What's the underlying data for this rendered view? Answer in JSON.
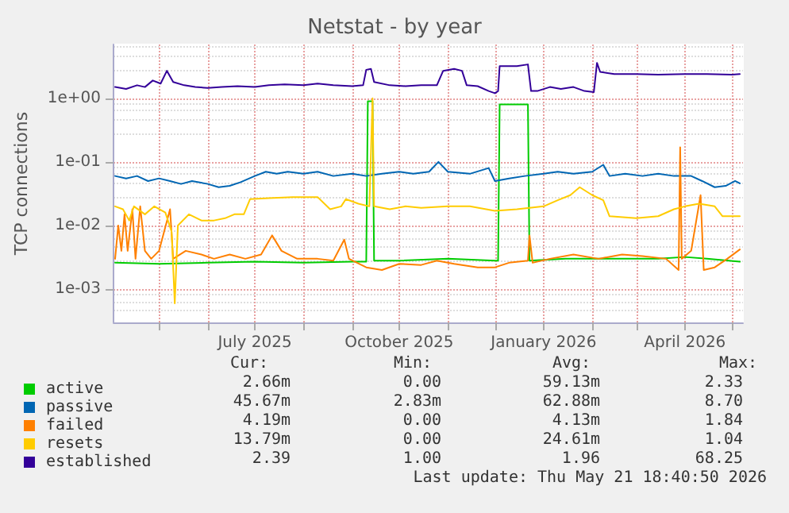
{
  "chart_data": {
    "type": "line",
    "title": "Netstat - by year",
    "ylabel": "TCP connections",
    "log": "y",
    "grid": true,
    "legend": "bottom",
    "marker": "none",
    "line_style": "solid",
    "xlim": [
      "2025-04-02",
      "2026-05-08"
    ],
    "xticks": [
      {
        "value": "2025-05-01",
        "label": null
      },
      {
        "value": "2025-06-01",
        "label": null
      },
      {
        "value": "2025-07-01",
        "label": "July 2025"
      },
      {
        "value": "2025-08-01",
        "label": null
      },
      {
        "value": "2025-09-01",
        "label": null
      },
      {
        "value": "2025-10-01",
        "label": "October 2025"
      },
      {
        "value": "2025-11-01",
        "label": null
      },
      {
        "value": "2025-12-01",
        "label": null
      },
      {
        "value": "2026-01-01",
        "label": "January 2026"
      },
      {
        "value": "2026-02-01",
        "label": null
      },
      {
        "value": "2026-03-01",
        "label": null
      },
      {
        "value": "2026-04-01",
        "label": "April 2026"
      },
      {
        "value": "2026-05-01",
        "label": null
      }
    ],
    "ylim": [
      0.0003,
      7
    ],
    "yticks": [
      {
        "value": 0.001,
        "label": "1e-03"
      },
      {
        "value": 0.01,
        "label": "1e-02"
      },
      {
        "value": 0.1,
        "label": "1e-01"
      },
      {
        "value": 1,
        "label": "1e+00"
      }
    ],
    "series": [
      {
        "name": "active",
        "color": "#00cc00",
        "x": [
          "2025-04-03",
          "2025-05-01",
          "2025-06-01",
          "2025-07-01",
          "2025-08-01",
          "2025-09-01",
          "2025-09-10",
          "2025-09-11",
          "2025-09-14",
          "2025-09-15",
          "2025-10-01",
          "2025-11-01",
          "2025-12-01",
          "2025-12-03",
          "2025-12-04",
          "2025-12-22",
          "2025-12-23",
          "2026-01-15",
          "2026-02-15",
          "2026-03-15",
          "2026-04-01",
          "2026-04-15",
          "2026-05-06"
        ],
        "values": [
          0.0026,
          0.0025,
          0.0026,
          0.0027,
          0.0026,
          0.0027,
          0.0027,
          0.9,
          0.9,
          0.0028,
          0.0028,
          0.003,
          0.0028,
          0.0028,
          0.8,
          0.8,
          0.0028,
          0.003,
          0.003,
          0.003,
          0.0032,
          0.003,
          0.0027
        ]
      },
      {
        "name": "passive",
        "color": "#0066b3",
        "x": [
          "2025-04-03",
          "2025-04-10",
          "2025-04-17",
          "2025-04-24",
          "2025-05-01",
          "2025-05-08",
          "2025-05-15",
          "2025-05-22",
          "2025-06-01",
          "2025-06-08",
          "2025-06-15",
          "2025-06-22",
          "2025-07-01",
          "2025-07-08",
          "2025-07-15",
          "2025-07-22",
          "2025-08-01",
          "2025-08-10",
          "2025-08-20",
          "2025-09-01",
          "2025-09-10",
          "2025-09-20",
          "2025-10-01",
          "2025-10-10",
          "2025-10-20",
          "2025-10-26",
          "2025-11-01",
          "2025-11-15",
          "2025-11-27",
          "2025-12-01",
          "2025-12-10",
          "2025-12-20",
          "2026-01-01",
          "2026-01-10",
          "2026-01-20",
          "2026-02-01",
          "2026-02-08",
          "2026-02-12",
          "2026-02-22",
          "2026-03-05",
          "2026-03-15",
          "2026-03-25",
          "2026-04-05",
          "2026-04-12",
          "2026-04-20",
          "2026-04-27",
          "2026-05-03",
          "2026-05-06"
        ],
        "values": [
          0.06,
          0.055,
          0.06,
          0.05,
          0.055,
          0.05,
          0.045,
          0.05,
          0.045,
          0.04,
          0.042,
          0.048,
          0.06,
          0.07,
          0.065,
          0.07,
          0.065,
          0.07,
          0.06,
          0.065,
          0.06,
          0.065,
          0.07,
          0.065,
          0.07,
          0.1,
          0.07,
          0.065,
          0.08,
          0.05,
          0.055,
          0.06,
          0.065,
          0.07,
          0.065,
          0.07,
          0.09,
          0.06,
          0.065,
          0.06,
          0.065,
          0.06,
          0.06,
          0.05,
          0.04,
          0.042,
          0.05,
          0.046
        ]
      },
      {
        "name": "failed",
        "color": "#ff8000",
        "x": [
          "2025-04-03",
          "2025-04-05",
          "2025-04-07",
          "2025-04-09",
          "2025-04-11",
          "2025-04-14",
          "2025-04-16",
          "2025-04-19",
          "2025-04-22",
          "2025-04-26",
          "2025-05-01",
          "2025-05-08",
          "2025-05-10",
          "2025-05-18",
          "2025-05-28",
          "2025-06-05",
          "2025-06-15",
          "2025-06-25",
          "2025-07-05",
          "2025-07-12",
          "2025-07-18",
          "2025-07-28",
          "2025-08-10",
          "2025-08-20",
          "2025-08-27",
          "2025-08-30",
          "2025-09-10",
          "2025-09-20",
          "2025-10-01",
          "2025-10-15",
          "2025-10-25",
          "2025-11-05",
          "2025-11-20",
          "2025-12-01",
          "2025-12-10",
          "2025-12-22",
          "2025-12-23",
          "2025-12-25",
          "2026-01-05",
          "2026-01-20",
          "2026-02-05",
          "2026-02-20",
          "2026-03-05",
          "2026-03-20",
          "2026-03-28",
          "2026-03-29",
          "2026-03-30",
          "2026-04-05",
          "2026-04-11",
          "2026-04-13",
          "2026-04-20",
          "2026-04-28",
          "2026-05-06"
        ],
        "values": [
          0.003,
          0.01,
          0.004,
          0.015,
          0.004,
          0.018,
          0.003,
          0.02,
          0.004,
          0.003,
          0.004,
          0.018,
          0.003,
          0.004,
          0.0035,
          0.003,
          0.0035,
          0.003,
          0.0035,
          0.007,
          0.004,
          0.003,
          0.003,
          0.0028,
          0.006,
          0.003,
          0.0022,
          0.002,
          0.0025,
          0.0024,
          0.0028,
          0.0025,
          0.0022,
          0.0022,
          0.0026,
          0.0028,
          0.007,
          0.0026,
          0.003,
          0.0035,
          0.003,
          0.0035,
          0.0033,
          0.003,
          0.002,
          0.17,
          0.003,
          0.004,
          0.03,
          0.002,
          0.0022,
          0.003,
          0.0042
        ]
      },
      {
        "name": "resets",
        "color": "#ffcc00",
        "x": [
          "2025-04-03",
          "2025-04-08",
          "2025-04-12",
          "2025-04-15",
          "2025-04-22",
          "2025-04-28",
          "2025-05-05",
          "2025-05-09",
          "2025-05-11",
          "2025-05-13",
          "2025-05-20",
          "2025-05-28",
          "2025-06-05",
          "2025-06-12",
          "2025-06-18",
          "2025-06-24",
          "2025-06-28",
          "2025-07-10",
          "2025-07-25",
          "2025-08-10",
          "2025-08-18",
          "2025-08-25",
          "2025-08-28",
          "2025-09-05",
          "2025-09-12",
          "2025-09-14",
          "2025-09-15",
          "2025-09-25",
          "2025-10-05",
          "2025-10-15",
          "2025-11-01",
          "2025-11-15",
          "2025-12-01",
          "2025-12-15",
          "2026-01-01",
          "2026-01-10",
          "2026-01-18",
          "2026-01-24",
          "2026-02-01",
          "2026-02-08",
          "2026-02-12",
          "2026-03-01",
          "2026-03-15",
          "2026-03-25",
          "2026-04-01",
          "2026-04-10",
          "2026-04-20",
          "2026-04-25",
          "2026-05-06"
        ],
        "values": [
          0.02,
          0.018,
          0.012,
          0.02,
          0.015,
          0.02,
          0.016,
          0.008,
          0.0006,
          0.01,
          0.015,
          0.012,
          0.012,
          0.013,
          0.015,
          0.015,
          0.026,
          0.027,
          0.028,
          0.028,
          0.018,
          0.02,
          0.026,
          0.022,
          0.02,
          1.0,
          0.02,
          0.018,
          0.02,
          0.019,
          0.02,
          0.02,
          0.017,
          0.018,
          0.02,
          0.025,
          0.03,
          0.04,
          0.03,
          0.025,
          0.014,
          0.013,
          0.014,
          0.018,
          0.02,
          0.022,
          0.02,
          0.014,
          0.014
        ]
      },
      {
        "name": "established",
        "color": "#330099",
        "x": [
          "2025-04-03",
          "2025-04-10",
          "2025-04-17",
          "2025-04-22",
          "2025-04-27",
          "2025-05-02",
          "2025-05-06",
          "2025-05-10",
          "2025-05-17",
          "2025-05-24",
          "2025-06-01",
          "2025-06-10",
          "2025-06-20",
          "2025-07-01",
          "2025-07-10",
          "2025-07-20",
          "2025-08-01",
          "2025-08-10",
          "2025-08-20",
          "2025-09-01",
          "2025-09-08",
          "2025-09-10",
          "2025-09-13",
          "2025-09-15",
          "2025-09-25",
          "2025-10-05",
          "2025-10-15",
          "2025-10-25",
          "2025-10-29",
          "2025-11-05",
          "2025-11-10",
          "2025-11-13",
          "2025-11-20",
          "2025-11-27",
          "2025-12-01",
          "2025-12-03",
          "2025-12-04",
          "2025-12-15",
          "2025-12-22",
          "2025-12-24",
          "2025-12-28",
          "2026-01-05",
          "2026-01-12",
          "2026-01-20",
          "2026-01-27",
          "2026-02-02",
          "2026-02-04",
          "2026-02-06",
          "2026-02-15",
          "2026-03-01",
          "2026-03-15",
          "2026-04-01",
          "2026-04-15",
          "2026-05-01",
          "2026-05-06"
        ],
        "values": [
          1.5,
          1.4,
          1.6,
          1.5,
          1.9,
          1.7,
          2.7,
          1.8,
          1.6,
          1.5,
          1.45,
          1.5,
          1.55,
          1.5,
          1.6,
          1.65,
          1.6,
          1.7,
          1.6,
          1.55,
          1.6,
          2.8,
          2.9,
          1.8,
          1.6,
          1.55,
          1.6,
          1.6,
          2.7,
          2.9,
          2.7,
          1.6,
          1.55,
          1.3,
          1.2,
          1.3,
          3.2,
          3.2,
          3.4,
          1.3,
          1.3,
          1.5,
          1.4,
          1.5,
          1.3,
          1.25,
          3.6,
          2.6,
          2.4,
          2.4,
          2.35,
          2.4,
          2.4,
          2.35,
          2.4
        ]
      }
    ],
    "annotations": [
      "Cur:",
      "Min:",
      "Avg:",
      "Max:",
      "2.66m",
      "0.00",
      "59.13m",
      "2.33",
      "45.67m",
      "2.83m",
      "62.88m",
      "8.70",
      "4.19m",
      "0.00",
      "4.13m",
      "1.84",
      "13.79m",
      "0.00",
      "24.61m",
      "1.04",
      "2.39",
      "1.00",
      "1.96",
      "68.25",
      "Last update: Thu May 21 18:40:50 2026"
    ]
  }
}
